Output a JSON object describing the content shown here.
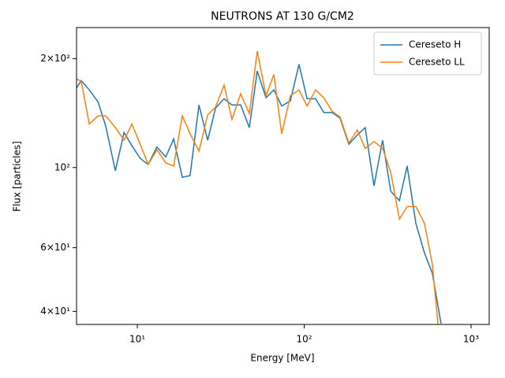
{
  "chart_data": {
    "type": "line",
    "title": "NEUTRONS AT 130 G/CM2",
    "x_label": "Energy [MeV]",
    "y_label": "Flux [particles]",
    "x": [
      4.32,
      4.61,
      5.15,
      5.81,
      6.47,
      7.38,
      8.32,
      9.27,
      10.4,
      11.6,
      13.1,
      14.8,
      16.5,
      18.6,
      20.7,
      23.4,
      26.4,
      29.4,
      33.1,
      36.9,
      41.6,
      46.9,
      52.3,
      59.0,
      65.8,
      73.3,
      82.6,
      93.1,
      104,
      117,
      131,
      147,
      164,
      185,
      208,
      232,
      262,
      295,
      330,
      372,
      414,
      467,
      526,
      586,
      661
    ],
    "series": [
      {
        "name": "Cereseto H",
        "color": "#1f77b4",
        "values": [
          166,
          174,
          164,
          152,
          130,
          98,
          125,
          115,
          106,
          102,
          114,
          107,
          120,
          94,
          95,
          149,
          119,
          146,
          155,
          149,
          149,
          129,
          185,
          156,
          164,
          148,
          153,
          193,
          155,
          155,
          142,
          142,
          137,
          116,
          123,
          129,
          89,
          119,
          86,
          81,
          101,
          70,
          58,
          51,
          37
        ]
      },
      {
        "name": "Cereseto LL",
        "color": "#ff7f0e",
        "values": [
          176,
          173,
          132,
          139,
          139,
          129,
          119,
          132,
          116,
          102,
          112,
          103,
          101,
          139,
          124,
          111,
          140,
          147,
          169,
          136,
          160,
          141,
          210,
          158,
          181,
          124,
          158,
          164,
          148,
          164,
          156,
          143,
          138,
          117,
          127,
          113,
          118,
          113,
          97,
          72,
          78,
          78,
          70,
          54,
          30
        ]
      }
    ],
    "xlim": [
      4.32,
      1285
    ],
    "ylim": [
      36.8,
      244
    ],
    "xticks": [
      {
        "value": 10,
        "label": "10¹"
      },
      {
        "value": 100,
        "label": "10²"
      },
      {
        "value": 1000,
        "label": "10³"
      }
    ],
    "yticks": [
      {
        "value": 40,
        "label": "4×10¹"
      },
      {
        "value": 60,
        "label": "6×10¹"
      },
      {
        "value": 100,
        "label": "10²"
      },
      {
        "value": 200,
        "label": "2×10²"
      }
    ],
    "xscale": "log",
    "yscale": "log",
    "legend": "upper right"
  }
}
